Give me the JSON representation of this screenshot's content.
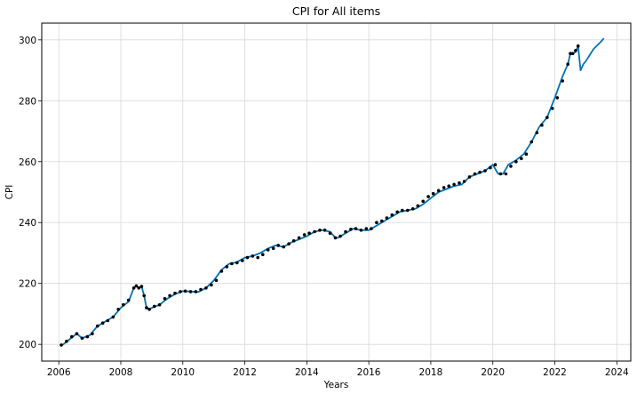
{
  "chart_data": {
    "type": "line",
    "title": "CPI for All items",
    "xlabel": "Years",
    "ylabel": "CPI",
    "xlim": [
      2005.45,
      2024.45
    ],
    "ylim": [
      194.5,
      305.5
    ],
    "x_ticks": [
      2006,
      2008,
      2010,
      2012,
      2014,
      2016,
      2018,
      2020,
      2022,
      2024
    ],
    "x_tick_labels": [
      "2006",
      "2008",
      "2010",
      "2012",
      "2014",
      "2016",
      "2018",
      "2020",
      "2022",
      "2024"
    ],
    "y_ticks": [
      200,
      220,
      240,
      260,
      280,
      300
    ],
    "y_tick_labels": [
      "200",
      "220",
      "240",
      "260",
      "280",
      "300"
    ],
    "grid": true,
    "colors": {
      "line": "#0072B2",
      "points": "#000000",
      "grid": "#d9d9d9"
    },
    "series": [
      {
        "style": "line",
        "x": [
          2006.08,
          2006.33,
          2006.58,
          2006.75,
          2007.0,
          2007.25,
          2007.5,
          2007.75,
          2008.0,
          2008.25,
          2008.42,
          2008.5,
          2008.58,
          2008.67,
          2008.75,
          2008.83,
          2008.92,
          2009.0,
          2009.25,
          2009.5,
          2009.75,
          2010.0,
          2010.5,
          2010.75,
          2011.0,
          2011.25,
          2011.5,
          2011.75,
          2012.0,
          2012.25,
          2012.5,
          2012.75,
          2013.0,
          2013.25,
          2013.5,
          2013.75,
          2014.0,
          2014.25,
          2014.5,
          2014.75,
          2014.92,
          2015.0,
          2015.25,
          2015.5,
          2015.75,
          2016.0,
          2016.25,
          2016.5,
          2016.75,
          2017.0,
          2017.25,
          2017.5,
          2017.75,
          2018.0,
          2018.25,
          2018.5,
          2018.75,
          2019.0,
          2019.25,
          2019.5,
          2019.75,
          2020.0,
          2020.17,
          2020.33,
          2020.5,
          2020.75,
          2021.0,
          2021.25,
          2021.5,
          2021.75,
          2022.0,
          2022.25,
          2022.42,
          2022.5,
          2022.58,
          2022.67,
          2022.75,
          2022.83,
          2022.92,
          2023.0,
          2023.25,
          2023.5,
          2023.58
        ],
        "y": [
          199.5,
          201.5,
          203.5,
          202.0,
          203.0,
          206.0,
          207.5,
          209.0,
          212.0,
          214.0,
          218.5,
          219.2,
          218.5,
          219.0,
          216.0,
          212.0,
          211.5,
          212.0,
          213.0,
          215.0,
          216.5,
          217.5,
          217.2,
          218.5,
          221.0,
          224.5,
          226.5,
          227.0,
          228.5,
          229.0,
          230.0,
          231.5,
          232.5,
          232.0,
          233.5,
          234.5,
          235.5,
          237.0,
          237.5,
          237.0,
          235.0,
          235.0,
          236.5,
          238.0,
          237.5,
          237.5,
          239.0,
          240.5,
          242.0,
          243.5,
          244.0,
          244.5,
          246.0,
          248.0,
          250.0,
          251.0,
          252.0,
          252.5,
          255.0,
          256.0,
          257.0,
          259.0,
          256.0,
          256.0,
          259.0,
          260.5,
          262.5,
          266.5,
          271.5,
          274.5,
          281.0,
          288.0,
          292.0,
          295.5,
          295.5,
          296.0,
          298.0,
          290.0,
          292.0,
          293.0,
          297.0,
          299.5,
          300.5
        ]
      },
      {
        "style": "points",
        "x": [
          2006.08,
          2006.25,
          2006.42,
          2006.58,
          2006.75,
          2006.92,
          2007.08,
          2007.25,
          2007.42,
          2007.58,
          2007.75,
          2007.92,
          2008.08,
          2008.25,
          2008.42,
          2008.5,
          2008.58,
          2008.67,
          2008.75,
          2008.83,
          2008.92,
          2009.08,
          2009.25,
          2009.42,
          2009.58,
          2009.75,
          2009.92,
          2010.08,
          2010.25,
          2010.42,
          2010.58,
          2010.75,
          2010.92,
          2011.08,
          2011.25,
          2011.42,
          2011.58,
          2011.75,
          2011.92,
          2012.08,
          2012.25,
          2012.42,
          2012.58,
          2012.75,
          2012.92,
          2013.08,
          2013.25,
          2013.42,
          2013.58,
          2013.75,
          2013.92,
          2014.08,
          2014.25,
          2014.42,
          2014.58,
          2014.75,
          2014.92,
          2015.08,
          2015.25,
          2015.42,
          2015.58,
          2015.75,
          2015.92,
          2016.08,
          2016.25,
          2016.42,
          2016.58,
          2016.75,
          2016.92,
          2017.08,
          2017.25,
          2017.42,
          2017.58,
          2017.75,
          2017.92,
          2018.08,
          2018.25,
          2018.42,
          2018.58,
          2018.75,
          2018.92,
          2019.08,
          2019.25,
          2019.42,
          2019.58,
          2019.75,
          2019.92,
          2020.08,
          2020.25,
          2020.42,
          2020.58,
          2020.75,
          2020.92,
          2021.08,
          2021.25,
          2021.42,
          2021.58,
          2021.75,
          2021.92,
          2022.08,
          2022.25,
          2022.42,
          2022.5,
          2022.58,
          2022.67,
          2022.75
        ],
        "y": [
          199.8,
          201.0,
          202.5,
          203.5,
          202.0,
          202.5,
          203.5,
          206.0,
          207.0,
          207.8,
          209.0,
          211.5,
          213.0,
          214.5,
          218.5,
          219.2,
          218.5,
          219.0,
          216.0,
          212.0,
          211.5,
          212.5,
          213.0,
          215.0,
          216.0,
          216.8,
          217.3,
          217.5,
          217.3,
          217.3,
          218.0,
          218.5,
          219.5,
          221.0,
          224.0,
          225.5,
          226.5,
          226.8,
          227.5,
          228.5,
          229.0,
          228.5,
          229.5,
          231.0,
          231.5,
          232.5,
          232.0,
          233.0,
          234.0,
          235.0,
          236.0,
          236.5,
          237.0,
          237.5,
          237.5,
          236.5,
          235.0,
          235.5,
          237.0,
          237.8,
          238.0,
          237.5,
          238.0,
          238.0,
          240.0,
          240.5,
          241.5,
          242.5,
          243.5,
          244.0,
          244.0,
          244.5,
          245.5,
          247.0,
          248.5,
          249.5,
          250.5,
          251.5,
          252.0,
          252.5,
          253.0,
          253.5,
          255.0,
          256.0,
          256.5,
          257.0,
          258.0,
          259.0,
          256.0,
          256.0,
          258.5,
          260.0,
          261.0,
          262.5,
          266.5,
          269.5,
          272.0,
          274.5,
          277.5,
          281.0,
          286.5,
          292.0,
          295.5,
          295.5,
          296.5,
          298.0
        ]
      }
    ]
  }
}
